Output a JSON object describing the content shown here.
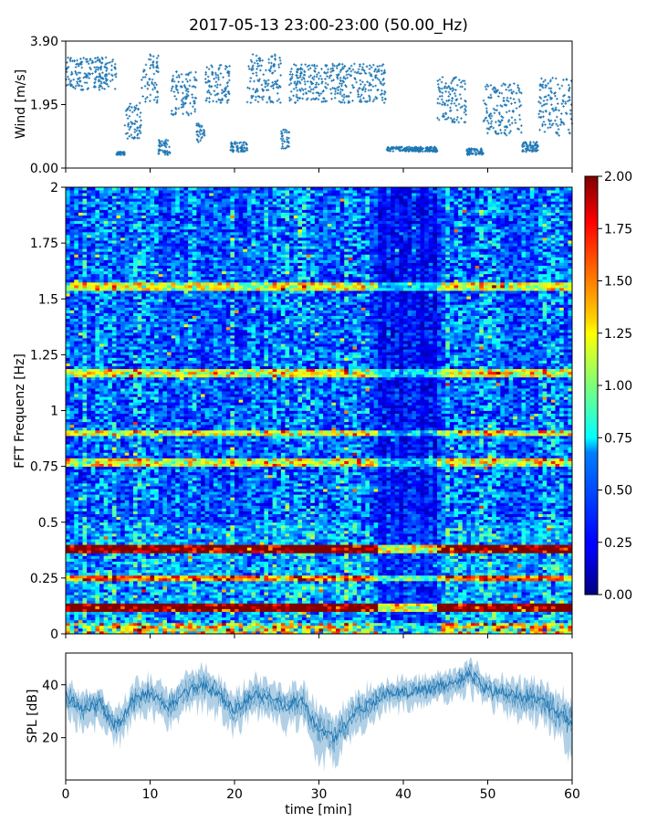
{
  "title": "2017-05-13 23:00-23:00 (50.00_Hz)",
  "chart_data": [
    {
      "type": "scatter",
      "name": "wind",
      "ylabel": "Wind [m/s]",
      "ylim": [
        0,
        3.9
      ],
      "yticks": [
        "0.00",
        "1.95",
        "3.90"
      ],
      "ytick_values": [
        0,
        1.95,
        3.9
      ],
      "xlim": [
        0,
        60
      ],
      "color": "#1f77b4",
      "segments": [
        {
          "x": [
            0,
            6
          ],
          "y": [
            2.4,
            3.4
          ]
        },
        {
          "x": [
            6,
            7
          ],
          "y": [
            0.4,
            0.5
          ]
        },
        {
          "x": [
            7,
            9
          ],
          "y": [
            0.9,
            2.0
          ]
        },
        {
          "x": [
            9,
            11
          ],
          "y": [
            2.0,
            3.5
          ]
        },
        {
          "x": [
            11,
            12.5
          ],
          "y": [
            0.4,
            0.9
          ]
        },
        {
          "x": [
            12.5,
            15.5
          ],
          "y": [
            1.6,
            3.0
          ]
        },
        {
          "x": [
            15.5,
            16.5
          ],
          "y": [
            0.8,
            1.4
          ]
        },
        {
          "x": [
            16.5,
            19.5
          ],
          "y": [
            2.0,
            3.2
          ]
        },
        {
          "x": [
            19.5,
            21.5
          ],
          "y": [
            0.5,
            0.8
          ]
        },
        {
          "x": [
            21.5,
            25.5
          ],
          "y": [
            2.0,
            3.5
          ]
        },
        {
          "x": [
            25.5,
            26.5
          ],
          "y": [
            0.6,
            1.2
          ]
        },
        {
          "x": [
            26.5,
            38
          ],
          "y": [
            2.0,
            3.2
          ]
        },
        {
          "x": [
            38,
            44
          ],
          "y": [
            0.5,
            0.65
          ]
        },
        {
          "x": [
            44,
            47.5
          ],
          "y": [
            1.4,
            2.8
          ]
        },
        {
          "x": [
            47.5,
            49.5
          ],
          "y": [
            0.4,
            0.6
          ]
        },
        {
          "x": [
            49.5,
            54
          ],
          "y": [
            1.0,
            2.6
          ]
        },
        {
          "x": [
            54,
            56
          ],
          "y": [
            0.5,
            0.8
          ]
        },
        {
          "x": [
            56,
            60
          ],
          "y": [
            1.0,
            2.8
          ]
        }
      ]
    },
    {
      "type": "heatmap",
      "name": "spectrogram",
      "ylabel": "FFT Frequenz [Hz]",
      "ylim": [
        0,
        2
      ],
      "yticks": [
        "0",
        "0.25",
        "0.5",
        "0.75",
        "1",
        "1.25",
        "1.5",
        "1.75",
        "2"
      ],
      "ytick_values": [
        0,
        0.25,
        0.5,
        0.75,
        1,
        1.25,
        1.5,
        1.75,
        2
      ],
      "xlim": [
        0,
        60
      ],
      "colormap": "jet",
      "bands_hz": [
        0.12,
        0.25,
        0.38,
        0.77,
        0.9,
        1.17,
        1.56
      ],
      "colorbar": {
        "range": [
          0,
          2
        ],
        "ticks": [
          "0.00",
          "0.25",
          "0.50",
          "0.75",
          "1.00",
          "1.25",
          "1.50",
          "1.75",
          "2.00"
        ],
        "tick_values": [
          0,
          0.25,
          0.5,
          0.75,
          1,
          1.25,
          1.5,
          1.75,
          2
        ]
      }
    },
    {
      "type": "area",
      "name": "spl",
      "ylabel": "SPL [dB]",
      "xlabel": "time [min]",
      "ylim": [
        4,
        52
      ],
      "yticks": [
        "20",
        "40"
      ],
      "ytick_values": [
        20,
        40
      ],
      "xlim": [
        0,
        60
      ],
      "xticks": [
        "0",
        "10",
        "20",
        "30",
        "40",
        "50",
        "60"
      ],
      "xtick_values": [
        0,
        10,
        20,
        30,
        40,
        50,
        60
      ],
      "color": "#1f77b4",
      "x": [
        0,
        2,
        4,
        6,
        8,
        10,
        12,
        14,
        16,
        18,
        20,
        22,
        24,
        26,
        28,
        30,
        32,
        34,
        36,
        38,
        40,
        42,
        44,
        46,
        48,
        50,
        52,
        54,
        56,
        58,
        60
      ],
      "y_center": [
        36,
        31,
        33,
        24,
        34,
        37,
        31,
        37,
        40,
        37,
        30,
        36,
        35,
        32,
        34,
        23,
        20,
        29,
        33,
        37,
        37,
        38,
        39,
        41,
        44,
        38,
        37,
        35,
        35,
        30,
        26
      ],
      "y_spread": [
        8,
        8,
        8,
        7,
        8,
        8,
        8,
        8,
        8,
        8,
        8,
        8,
        8,
        8,
        9,
        11,
        10,
        9,
        8,
        6,
        6,
        6,
        6,
        6,
        7,
        6,
        7,
        8,
        9,
        10,
        12
      ]
    }
  ]
}
